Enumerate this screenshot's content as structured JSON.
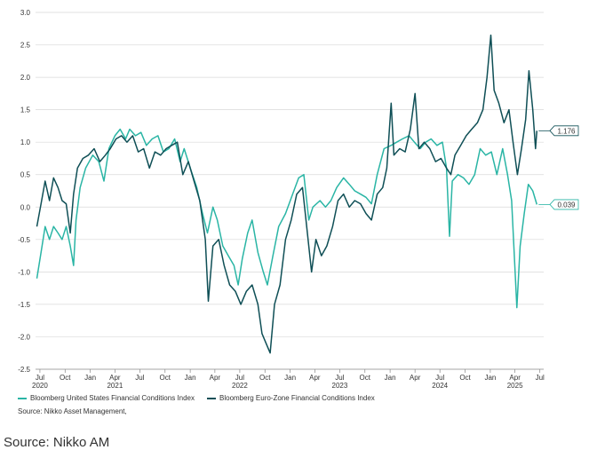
{
  "chart_data": {
    "type": "line",
    "title": "",
    "xlabel": "",
    "ylabel": "",
    "ylim": [
      -2.5,
      3.0
    ],
    "xlim": [
      "2020-06-15",
      "2025-07-15"
    ],
    "grid": "horizontal",
    "legend_position": "bottom",
    "y_ticks": [
      "3.0",
      "2.5",
      "2.0",
      "1.5",
      "1.0",
      "0.5",
      "0.0",
      "-0.5",
      "-1.0",
      "-1.5",
      "-2.0",
      "-2.5"
    ],
    "y_tick_values": [
      3.0,
      2.5,
      2.0,
      1.5,
      1.0,
      0.5,
      0.0,
      -0.5,
      -1.0,
      -1.5,
      -2.0,
      -2.5
    ],
    "x_ticks": [
      {
        "date": "2020-07-01",
        "month": "Jul",
        "year": "2020"
      },
      {
        "date": "2020-10-01",
        "month": "Oct",
        "year": ""
      },
      {
        "date": "2021-01-01",
        "month": "Jan",
        "year": ""
      },
      {
        "date": "2021-04-01",
        "month": "Apr",
        "year": "2021"
      },
      {
        "date": "2021-07-01",
        "month": "Jul",
        "year": ""
      },
      {
        "date": "2021-10-01",
        "month": "Oct",
        "year": ""
      },
      {
        "date": "2022-01-01",
        "month": "Jan",
        "year": ""
      },
      {
        "date": "2022-04-01",
        "month": "Apr",
        "year": ""
      },
      {
        "date": "2022-07-01",
        "month": "Jul",
        "year": "2022"
      },
      {
        "date": "2022-10-01",
        "month": "Oct",
        "year": ""
      },
      {
        "date": "2023-01-01",
        "month": "Jan",
        "year": ""
      },
      {
        "date": "2023-04-01",
        "month": "Apr",
        "year": ""
      },
      {
        "date": "2023-07-01",
        "month": "Jul",
        "year": "2023"
      },
      {
        "date": "2023-10-01",
        "month": "Oct",
        "year": ""
      },
      {
        "date": "2024-01-01",
        "month": "Jan",
        "year": ""
      },
      {
        "date": "2024-04-01",
        "month": "Apr",
        "year": ""
      },
      {
        "date": "2024-07-01",
        "month": "Jul",
        "year": "2024"
      },
      {
        "date": "2024-10-01",
        "month": "Oct",
        "year": ""
      },
      {
        "date": "2025-01-01",
        "month": "Jan",
        "year": ""
      },
      {
        "date": "2025-04-01",
        "month": "Apr",
        "year": "2025"
      },
      {
        "date": "2025-07-01",
        "month": "Jul",
        "year": ""
      }
    ],
    "series": [
      {
        "name": "Bloomberg United States Financial Conditions Index",
        "color": "#2ab5a5",
        "end_label": "0.039",
        "points": [
          [
            "2020-06-20",
            -1.1
          ],
          [
            "2020-07-05",
            -0.7
          ],
          [
            "2020-07-20",
            -0.3
          ],
          [
            "2020-08-05",
            -0.5
          ],
          [
            "2020-08-20",
            -0.3
          ],
          [
            "2020-09-05",
            -0.4
          ],
          [
            "2020-09-20",
            -0.5
          ],
          [
            "2020-10-05",
            -0.3
          ],
          [
            "2020-10-20",
            -0.6
          ],
          [
            "2020-11-01",
            -0.9
          ],
          [
            "2020-11-10",
            -0.2
          ],
          [
            "2020-11-25",
            0.3
          ],
          [
            "2020-12-15",
            0.6
          ],
          [
            "2021-01-10",
            0.8
          ],
          [
            "2021-02-01",
            0.7
          ],
          [
            "2021-02-20",
            0.4
          ],
          [
            "2021-03-10",
            0.9
          ],
          [
            "2021-04-01",
            1.1
          ],
          [
            "2021-04-20",
            1.2
          ],
          [
            "2021-05-10",
            1.05
          ],
          [
            "2021-05-25",
            1.2
          ],
          [
            "2021-06-15",
            1.1
          ],
          [
            "2021-07-05",
            1.15
          ],
          [
            "2021-07-25",
            0.95
          ],
          [
            "2021-08-15",
            1.05
          ],
          [
            "2021-09-05",
            1.1
          ],
          [
            "2021-09-25",
            0.85
          ],
          [
            "2021-10-15",
            0.9
          ],
          [
            "2021-11-05",
            1.05
          ],
          [
            "2021-11-25",
            0.7
          ],
          [
            "2021-12-10",
            0.9
          ],
          [
            "2022-01-05",
            0.55
          ],
          [
            "2022-01-25",
            0.3
          ],
          [
            "2022-02-15",
            -0.1
          ],
          [
            "2022-03-05",
            -0.4
          ],
          [
            "2022-03-25",
            0.0
          ],
          [
            "2022-04-10",
            -0.2
          ],
          [
            "2022-04-30",
            -0.6
          ],
          [
            "2022-05-20",
            -0.75
          ],
          [
            "2022-06-10",
            -0.9
          ],
          [
            "2022-06-25",
            -1.2
          ],
          [
            "2022-07-10",
            -0.8
          ],
          [
            "2022-07-30",
            -0.4
          ],
          [
            "2022-08-15",
            -0.2
          ],
          [
            "2022-09-05",
            -0.7
          ],
          [
            "2022-09-25",
            -1.0
          ],
          [
            "2022-10-10",
            -1.2
          ],
          [
            "2022-10-30",
            -0.75
          ],
          [
            "2022-11-20",
            -0.3
          ],
          [
            "2022-12-15",
            -0.1
          ],
          [
            "2023-01-10",
            0.2
          ],
          [
            "2023-02-01",
            0.45
          ],
          [
            "2023-02-20",
            0.5
          ],
          [
            "2023-03-10",
            -0.2
          ],
          [
            "2023-03-25",
            0.0
          ],
          [
            "2023-04-20",
            0.1
          ],
          [
            "2023-05-10",
            0.0
          ],
          [
            "2023-05-30",
            0.1
          ],
          [
            "2023-06-20",
            0.3
          ],
          [
            "2023-07-15",
            0.45
          ],
          [
            "2023-08-05",
            0.35
          ],
          [
            "2023-08-25",
            0.25
          ],
          [
            "2023-09-15",
            0.2
          ],
          [
            "2023-10-05",
            0.15
          ],
          [
            "2023-10-25",
            0.05
          ],
          [
            "2023-11-15",
            0.5
          ],
          [
            "2023-12-10",
            0.9
          ],
          [
            "2024-01-05",
            0.95
          ],
          [
            "2024-01-25",
            1.0
          ],
          [
            "2024-02-15",
            1.05
          ],
          [
            "2024-03-10",
            1.1
          ],
          [
            "2024-03-30",
            1.0
          ],
          [
            "2024-04-20",
            0.9
          ],
          [
            "2024-05-10",
            1.0
          ],
          [
            "2024-05-30",
            1.05
          ],
          [
            "2024-06-20",
            0.95
          ],
          [
            "2024-07-10",
            1.0
          ],
          [
            "2024-07-25",
            0.6
          ],
          [
            "2024-08-05",
            -0.45
          ],
          [
            "2024-08-15",
            0.4
          ],
          [
            "2024-09-05",
            0.5
          ],
          [
            "2024-09-25",
            0.45
          ],
          [
            "2024-10-15",
            0.35
          ],
          [
            "2024-11-05",
            0.5
          ],
          [
            "2024-11-25",
            0.9
          ],
          [
            "2024-12-15",
            0.8
          ],
          [
            "2025-01-05",
            0.85
          ],
          [
            "2025-01-25",
            0.5
          ],
          [
            "2025-02-15",
            0.9
          ],
          [
            "2025-03-05",
            0.5
          ],
          [
            "2025-03-20",
            0.1
          ],
          [
            "2025-04-08",
            -1.55
          ],
          [
            "2025-04-20",
            -0.6
          ],
          [
            "2025-05-05",
            -0.1
          ],
          [
            "2025-05-20",
            0.35
          ],
          [
            "2025-06-05",
            0.25
          ],
          [
            "2025-06-20",
            0.039
          ]
        ]
      },
      {
        "name": "Bloomberg Euro-Zone Financial Conditions Index",
        "color": "#0f4f56",
        "end_label": "1.176",
        "points": [
          [
            "2020-06-20",
            -0.3
          ],
          [
            "2020-07-05",
            0.05
          ],
          [
            "2020-07-20",
            0.4
          ],
          [
            "2020-08-05",
            0.1
          ],
          [
            "2020-08-20",
            0.45
          ],
          [
            "2020-09-05",
            0.3
          ],
          [
            "2020-09-20",
            0.1
          ],
          [
            "2020-10-05",
            0.05
          ],
          [
            "2020-10-20",
            -0.4
          ],
          [
            "2020-11-01",
            0.2
          ],
          [
            "2020-11-15",
            0.6
          ],
          [
            "2020-12-05",
            0.75
          ],
          [
            "2020-12-25",
            0.8
          ],
          [
            "2021-01-15",
            0.9
          ],
          [
            "2021-02-05",
            0.7
          ],
          [
            "2021-02-25",
            0.8
          ],
          [
            "2021-03-15",
            0.9
          ],
          [
            "2021-04-05",
            1.05
          ],
          [
            "2021-04-25",
            1.1
          ],
          [
            "2021-05-15",
            1.0
          ],
          [
            "2021-06-05",
            1.1
          ],
          [
            "2021-06-25",
            0.85
          ],
          [
            "2021-07-15",
            0.9
          ],
          [
            "2021-08-05",
            0.6
          ],
          [
            "2021-08-25",
            0.85
          ],
          [
            "2021-09-15",
            0.8
          ],
          [
            "2021-10-05",
            0.9
          ],
          [
            "2021-10-25",
            0.95
          ],
          [
            "2021-11-15",
            1.0
          ],
          [
            "2021-12-05",
            0.5
          ],
          [
            "2021-12-25",
            0.7
          ],
          [
            "2022-01-15",
            0.4
          ],
          [
            "2022-02-05",
            0.1
          ],
          [
            "2022-02-25",
            -0.5
          ],
          [
            "2022-03-08",
            -1.45
          ],
          [
            "2022-03-25",
            -0.6
          ],
          [
            "2022-04-15",
            -0.5
          ],
          [
            "2022-05-05",
            -0.9
          ],
          [
            "2022-05-25",
            -1.2
          ],
          [
            "2022-06-15",
            -1.3
          ],
          [
            "2022-07-05",
            -1.5
          ],
          [
            "2022-07-25",
            -1.3
          ],
          [
            "2022-08-15",
            -1.2
          ],
          [
            "2022-09-05",
            -1.5
          ],
          [
            "2022-09-20",
            -1.95
          ],
          [
            "2022-10-05",
            -2.1
          ],
          [
            "2022-10-20",
            -2.25
          ],
          [
            "2022-11-05",
            -1.5
          ],
          [
            "2022-11-25",
            -1.2
          ],
          [
            "2022-12-15",
            -0.5
          ],
          [
            "2023-01-05",
            -0.2
          ],
          [
            "2023-01-25",
            0.2
          ],
          [
            "2023-02-15",
            0.3
          ],
          [
            "2023-03-05",
            -0.4
          ],
          [
            "2023-03-20",
            -1.0
          ],
          [
            "2023-04-05",
            -0.5
          ],
          [
            "2023-04-25",
            -0.75
          ],
          [
            "2023-05-15",
            -0.6
          ],
          [
            "2023-06-05",
            -0.3
          ],
          [
            "2023-06-25",
            0.1
          ],
          [
            "2023-07-15",
            0.2
          ],
          [
            "2023-08-05",
            0.0
          ],
          [
            "2023-08-25",
            0.1
          ],
          [
            "2023-09-15",
            0.05
          ],
          [
            "2023-10-05",
            -0.1
          ],
          [
            "2023-10-25",
            -0.2
          ],
          [
            "2023-11-15",
            0.2
          ],
          [
            "2023-12-05",
            0.3
          ],
          [
            "2023-12-20",
            0.6
          ],
          [
            "2024-01-05",
            1.6
          ],
          [
            "2024-01-15",
            0.8
          ],
          [
            "2024-02-05",
            0.9
          ],
          [
            "2024-02-25",
            0.85
          ],
          [
            "2024-03-15",
            1.2
          ],
          [
            "2024-04-01",
            1.75
          ],
          [
            "2024-04-15",
            0.9
          ],
          [
            "2024-05-05",
            1.0
          ],
          [
            "2024-05-25",
            0.9
          ],
          [
            "2024-06-15",
            0.7
          ],
          [
            "2024-07-05",
            0.75
          ],
          [
            "2024-07-25",
            0.6
          ],
          [
            "2024-08-10",
            0.5
          ],
          [
            "2024-08-25",
            0.8
          ],
          [
            "2024-09-15",
            0.95
          ],
          [
            "2024-10-05",
            1.1
          ],
          [
            "2024-10-25",
            1.2
          ],
          [
            "2024-11-15",
            1.3
          ],
          [
            "2024-12-05",
            1.5
          ],
          [
            "2024-12-20",
            2.0
          ],
          [
            "2025-01-03",
            2.65
          ],
          [
            "2025-01-15",
            1.8
          ],
          [
            "2025-02-01",
            1.6
          ],
          [
            "2025-02-20",
            1.3
          ],
          [
            "2025-03-10",
            1.5
          ],
          [
            "2025-03-25",
            1.0
          ],
          [
            "2025-04-10",
            0.5
          ],
          [
            "2025-04-25",
            0.9
          ],
          [
            "2025-05-10",
            1.35
          ],
          [
            "2025-05-22",
            2.1
          ],
          [
            "2025-06-05",
            1.5
          ],
          [
            "2025-06-15",
            0.9
          ],
          [
            "2025-06-20",
            1.176
          ]
        ]
      }
    ]
  },
  "legend": {
    "us_label": "Bloomberg United States Financial Conditions Index",
    "eu_label": "Bloomberg Euro-Zone Financial Conditions Index"
  },
  "source_small": "Source: Nikko Asset Management,",
  "source_big": "Source: Nikko AM",
  "colors": {
    "us": "#2ab5a5",
    "eu": "#0f4f56",
    "grid": "#d9d9d9",
    "axis": "#888888"
  }
}
